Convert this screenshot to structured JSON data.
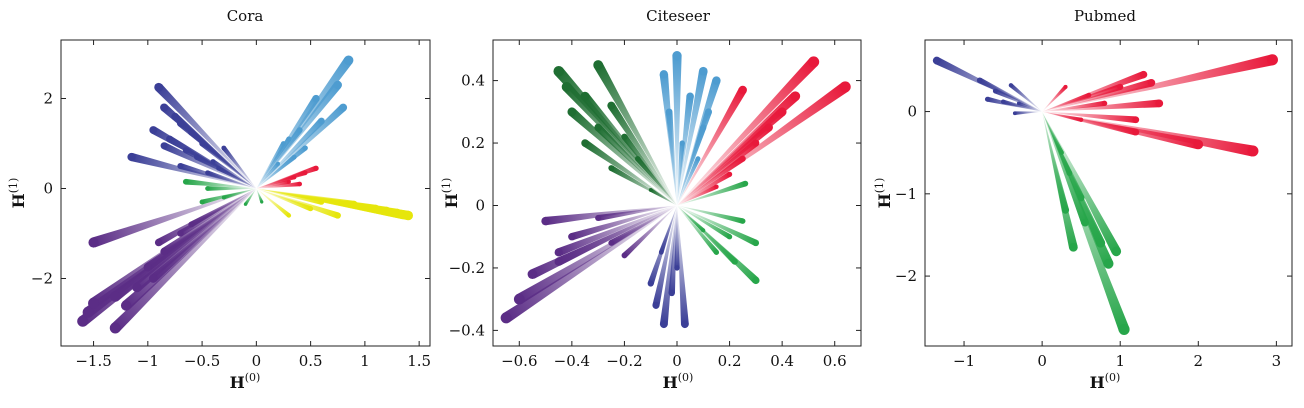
{
  "palette": {
    "dark_blue": "#3b3f97",
    "light_blue": "#4e9cd0",
    "purple": "#5b2d86",
    "red": "#e8193b",
    "green": "#27a64a",
    "dark_green": "#1f6e32",
    "yellow": "#e6e60b"
  },
  "chart_data": [
    {
      "type": "scatter",
      "title": "Cora",
      "xlabel": "H",
      "xlabel_sup": "(0)",
      "ylabel": "H",
      "ylabel_sup": "(1)",
      "xlim": [
        -1.8,
        1.6
      ],
      "ylim": [
        -3.5,
        3.3
      ],
      "xticks": [
        -1.5,
        -1,
        -0.5,
        0,
        0.5,
        1,
        1.5
      ],
      "xtick_labels": [
        "−1.5",
        "−1",
        "−0.5",
        "0",
        "0.5",
        "1",
        "1.5"
      ],
      "yticks": [
        -2,
        0,
        2
      ],
      "ytick_labels": [
        "−2",
        "0",
        "2"
      ],
      "grid": false,
      "origin": [
        0,
        0
      ],
      "series": [
        {
          "color": "#3b3f97",
          "points": [
            [
              -0.9,
              2.25
            ],
            [
              -0.85,
              1.8
            ],
            [
              -0.75,
              1.6
            ],
            [
              -0.95,
              1.3
            ],
            [
              -0.7,
              1.45
            ],
            [
              -0.6,
              1.25
            ],
            [
              -0.8,
              1.1
            ],
            [
              -0.5,
              1.0
            ],
            [
              -1.15,
              0.7
            ],
            [
              -0.65,
              0.85
            ],
            [
              -0.55,
              0.7
            ],
            [
              -0.85,
              0.95
            ],
            [
              -0.4,
              0.6
            ],
            [
              -0.7,
              0.5
            ],
            [
              -0.45,
              0.35
            ],
            [
              -0.3,
              0.9
            ],
            [
              -0.35,
              0.45
            ]
          ]
        },
        {
          "color": "#4e9cd0",
          "points": [
            [
              0.85,
              2.85
            ],
            [
              0.75,
              2.3
            ],
            [
              0.55,
              2.0
            ],
            [
              0.8,
              1.8
            ],
            [
              0.6,
              1.5
            ],
            [
              0.4,
              1.3
            ],
            [
              0.3,
              1.1
            ],
            [
              0.35,
              0.7
            ],
            [
              0.45,
              0.9
            ],
            [
              0.2,
              0.55
            ],
            [
              0.25,
              1.0
            ]
          ]
        },
        {
          "color": "#5b2d86",
          "points": [
            [
              -1.6,
              -2.95
            ],
            [
              -1.3,
              -3.1
            ],
            [
              -1.55,
              -2.75
            ],
            [
              -1.5,
              -2.55
            ],
            [
              -1.3,
              -2.4
            ],
            [
              -1.1,
              -2.2
            ],
            [
              -1.2,
              -2.6
            ],
            [
              -0.95,
              -2.0
            ],
            [
              -1.0,
              -1.75
            ],
            [
              -0.85,
              -1.4
            ],
            [
              -1.5,
              -1.2
            ],
            [
              -0.9,
              -1.2
            ],
            [
              -0.7,
              -1.0
            ],
            [
              -0.6,
              -0.8
            ]
          ]
        },
        {
          "color": "#e8193b",
          "points": [
            [
              0.55,
              0.45
            ],
            [
              0.45,
              0.35
            ],
            [
              0.35,
              0.25
            ],
            [
              0.3,
              0.15
            ],
            [
              0.4,
              0.1
            ]
          ]
        },
        {
          "color": "#27a64a",
          "points": [
            [
              -0.65,
              0.15
            ],
            [
              -0.45,
              0.0
            ],
            [
              -0.5,
              -0.3
            ],
            [
              -0.3,
              -0.2
            ],
            [
              -0.1,
              -0.35
            ],
            [
              0.05,
              -0.3
            ]
          ]
        },
        {
          "color": "#e6e60b",
          "points": [
            [
              1.4,
              -0.6
            ],
            [
              1.3,
              -0.55
            ],
            [
              1.2,
              -0.5
            ],
            [
              1.35,
              -0.58
            ],
            [
              1.1,
              -0.45
            ],
            [
              0.9,
              -0.35
            ],
            [
              0.75,
              -0.6
            ],
            [
              0.6,
              -0.3
            ],
            [
              0.5,
              -0.45
            ],
            [
              0.3,
              -0.6
            ]
          ]
        }
      ]
    },
    {
      "type": "scatter",
      "title": "Citeseer",
      "xlabel": "H",
      "xlabel_sup": "(0)",
      "ylabel": "H",
      "ylabel_sup": "(1)",
      "xlim": [
        -0.7,
        0.7
      ],
      "ylim": [
        -0.45,
        0.53
      ],
      "xticks": [
        -0.6,
        -0.4,
        -0.2,
        0,
        0.2,
        0.4,
        0.6
      ],
      "xtick_labels": [
        "−0.6",
        "−0.4",
        "−0.2",
        "0",
        "0.2",
        "0.4",
        "0.6"
      ],
      "yticks": [
        -0.4,
        -0.2,
        0,
        0.2,
        0.4
      ],
      "ytick_labels": [
        "−0.4",
        "−0.2",
        "0",
        "0.2",
        "0.4"
      ],
      "grid": false,
      "origin": [
        0,
        0
      ],
      "series": [
        {
          "color": "#1f6e32",
          "points": [
            [
              -0.45,
              0.43
            ],
            [
              -0.3,
              0.45
            ],
            [
              -0.42,
              0.38
            ],
            [
              -0.35,
              0.35
            ],
            [
              -0.4,
              0.3
            ],
            [
              -0.25,
              0.32
            ],
            [
              -0.3,
              0.25
            ],
            [
              -0.2,
              0.22
            ],
            [
              -0.35,
              0.2
            ],
            [
              -0.15,
              0.15
            ],
            [
              -0.25,
              0.12
            ],
            [
              -0.1,
              0.05
            ]
          ]
        },
        {
          "color": "#4e9cd0",
          "points": [
            [
              0.0,
              0.48
            ],
            [
              -0.05,
              0.42
            ],
            [
              0.1,
              0.43
            ],
            [
              0.15,
              0.4
            ],
            [
              0.05,
              0.35
            ],
            [
              0.12,
              0.3
            ],
            [
              -0.03,
              0.3
            ],
            [
              0.1,
              0.25
            ],
            [
              0.02,
              0.2
            ],
            [
              0.08,
              0.15
            ]
          ]
        },
        {
          "color": "#e8193b",
          "points": [
            [
              0.52,
              0.46
            ],
            [
              0.64,
              0.38
            ],
            [
              0.45,
              0.35
            ],
            [
              0.4,
              0.3
            ],
            [
              0.25,
              0.37
            ],
            [
              0.35,
              0.25
            ],
            [
              0.3,
              0.2
            ],
            [
              0.25,
              0.15
            ],
            [
              0.2,
              0.1
            ],
            [
              0.15,
              0.06
            ]
          ]
        },
        {
          "color": "#5b2d86",
          "points": [
            [
              -0.65,
              -0.36
            ],
            [
              -0.6,
              -0.3
            ],
            [
              -0.55,
              -0.22
            ],
            [
              -0.45,
              -0.15
            ],
            [
              -0.4,
              -0.1
            ],
            [
              -0.5,
              -0.05
            ],
            [
              -0.3,
              -0.04
            ],
            [
              -0.25,
              -0.12
            ],
            [
              -0.2,
              -0.16
            ],
            [
              -0.45,
              -0.18
            ]
          ]
        },
        {
          "color": "#3b3f97",
          "points": [
            [
              -0.05,
              -0.38
            ],
            [
              0.03,
              -0.38
            ],
            [
              -0.08,
              -0.32
            ],
            [
              -0.02,
              -0.28
            ],
            [
              -0.1,
              -0.25
            ],
            [
              0.0,
              -0.2
            ],
            [
              -0.06,
              -0.15
            ]
          ]
        },
        {
          "color": "#27a64a",
          "points": [
            [
              0.3,
              -0.12
            ],
            [
              0.22,
              -0.18
            ],
            [
              0.15,
              -0.15
            ],
            [
              0.2,
              -0.1
            ],
            [
              0.25,
              -0.05
            ],
            [
              0.1,
              -0.08
            ],
            [
              0.3,
              -0.24
            ],
            [
              0.26,
              0.07
            ]
          ]
        }
      ]
    },
    {
      "type": "scatter",
      "title": "Pubmed",
      "xlabel": "H",
      "xlabel_sup": "(0)",
      "ylabel": "H",
      "ylabel_sup": "(1)",
      "xlim": [
        -1.5,
        3.2
      ],
      "ylim": [
        -2.85,
        0.87
      ],
      "xticks": [
        -1,
        0,
        1,
        2,
        3
      ],
      "xtick_labels": [
        "−1",
        "0",
        "1",
        "2",
        "3"
      ],
      "yticks": [
        -2,
        -1,
        0
      ],
      "ytick_labels": [
        "−2",
        "−1",
        "0"
      ],
      "grid": false,
      "origin": [
        0,
        0
      ],
      "series": [
        {
          "color": "#3b3f97",
          "points": [
            [
              -1.35,
              0.62
            ],
            [
              -0.8,
              0.38
            ],
            [
              -0.6,
              0.25
            ],
            [
              -0.4,
              0.32
            ],
            [
              -0.5,
              0.12
            ],
            [
              -0.3,
              0.1
            ],
            [
              -0.7,
              0.15
            ],
            [
              -0.35,
              -0.02
            ]
          ]
        },
        {
          "color": "#e8193b",
          "points": [
            [
              2.95,
              0.63
            ],
            [
              2.7,
              -0.48
            ],
            [
              2.0,
              -0.4
            ],
            [
              1.5,
              0.1
            ],
            [
              1.4,
              0.35
            ],
            [
              1.3,
              0.45
            ],
            [
              1.0,
              0.3
            ],
            [
              0.8,
              0.1
            ],
            [
              1.2,
              -0.1
            ],
            [
              0.6,
              0.2
            ],
            [
              0.5,
              -0.1
            ],
            [
              0.3,
              0.3
            ],
            [
              1.2,
              -0.25
            ]
          ]
        },
        {
          "color": "#27a64a",
          "points": [
            [
              1.05,
              -2.65
            ],
            [
              0.85,
              -1.85
            ],
            [
              0.75,
              -1.6
            ],
            [
              0.95,
              -1.7
            ],
            [
              0.4,
              -1.65
            ],
            [
              0.55,
              -1.35
            ],
            [
              0.5,
              -1.05
            ],
            [
              0.3,
              -1.2
            ],
            [
              0.35,
              -0.75
            ],
            [
              0.25,
              -0.5
            ]
          ]
        }
      ]
    }
  ]
}
